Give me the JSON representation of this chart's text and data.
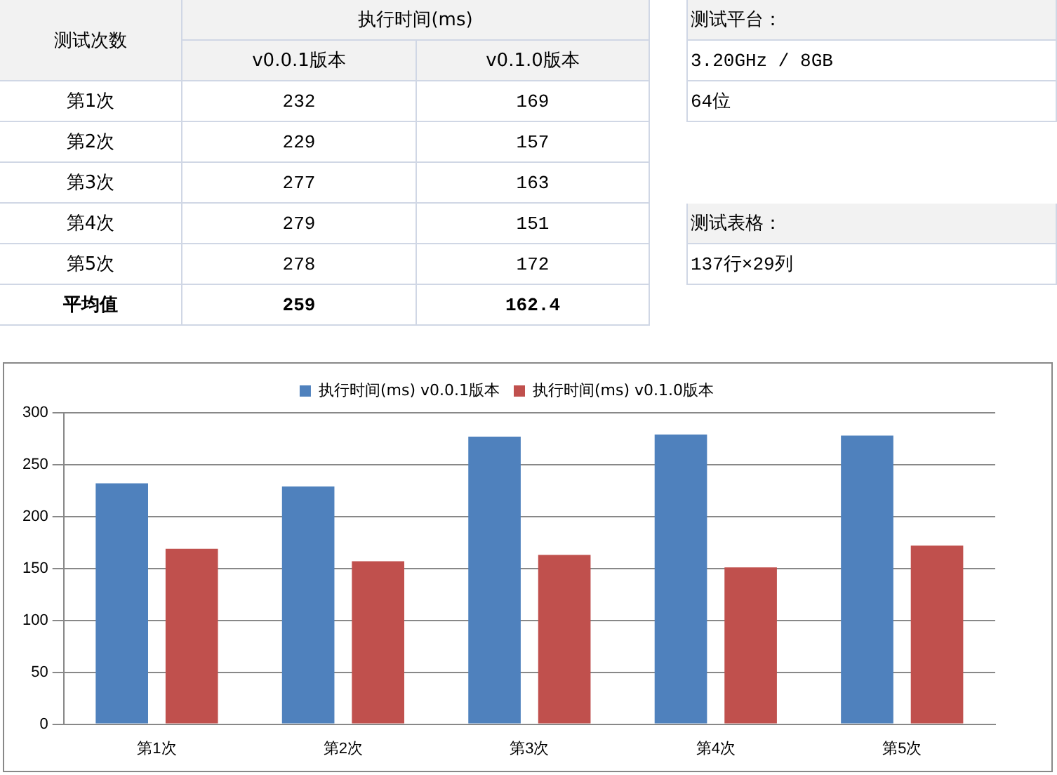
{
  "chart_data": [
    {
      "type": "other",
      "annotations": [
        "测试次数",
        "执行时间(ms)",
        "v0.0.1版本",
        "v0.1.0版本",
        "第1次",
        "232",
        "169",
        "第2次",
        "229",
        "157",
        "第3次",
        "277",
        "163",
        "第4次",
        "279",
        "151",
        "第5次",
        "278",
        "172",
        "平均值",
        "259",
        "162.4",
        "测试平台：",
        "3.20GHz / 8GB",
        "64位",
        "测试表格：",
        "137行×29列"
      ]
    },
    {
      "type": "bar",
      "categories": [
        "第1次",
        "第2次",
        "第3次",
        "第4次",
        "第5次"
      ],
      "series": [
        {
          "name": "执行时间(ms) v0.0.1版本",
          "color": "#4f81bd",
          "values": [
            232,
            229,
            277,
            279,
            278
          ]
        },
        {
          "name": "执行时间(ms) v0.1.0版本",
          "color": "#c0504d",
          "values": [
            169,
            157,
            163,
            151,
            172
          ]
        }
      ],
      "ylim": [
        0,
        300
      ],
      "yticks": [
        0,
        50,
        100,
        150,
        200,
        250,
        300
      ],
      "grid": "y",
      "legend": "top"
    }
  ]
}
